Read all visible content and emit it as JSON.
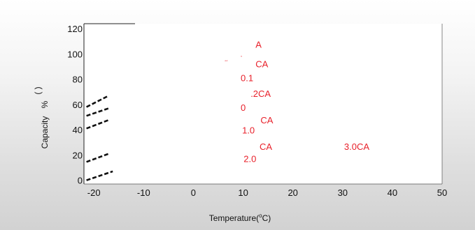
{
  "chart_data": {
    "type": "line",
    "title": "",
    "xlabel_main": "Temperature(",
    "xlabel_sup": "o",
    "xlabel_tail": "C)",
    "ylabel_text": "Capacity",
    "ylabel_pct": "%",
    "ylabel_paren": "( )",
    "xlim": [
      -22,
      50
    ],
    "ylim": [
      -3,
      124
    ],
    "x_ticks": [
      "-20",
      "-10",
      "0",
      "10",
      "20",
      "30",
      "40",
      "50"
    ],
    "x_tick_values": [
      -20,
      -10,
      0,
      10,
      20,
      30,
      40,
      50
    ],
    "y_ticks": [
      "0",
      "20",
      "40",
      "60",
      "80",
      "100",
      "120"
    ],
    "y_tick_values": [
      0,
      20,
      40,
      60,
      80,
      100,
      120
    ],
    "grid": false,
    "series_color": "#111111",
    "annotation_color": "#e8202a",
    "series": [
      {
        "x": [
          -21.5,
          -16.2
        ],
        "y": [
          0,
          7
        ]
      },
      {
        "x": [
          -21.5,
          -17.0
        ],
        "y": [
          14.5,
          21
        ]
      },
      {
        "x": [
          -21.5,
          -16.8
        ],
        "y": [
          41,
          48
        ]
      },
      {
        "x": [
          -21.5,
          -17.0
        ],
        "y": [
          51,
          57
        ]
      },
      {
        "x": [
          -21.5,
          -17.0
        ],
        "y": [
          58,
          67
        ]
      }
    ],
    "annotations": [
      {
        "text": "A",
        "x": 12.5,
        "y": 105,
        "size": "normal"
      },
      {
        "text": "«",
        "x": 9.5,
        "y": 97.5,
        "size": "small"
      },
      {
        "text": "««",
        "x": 6.3,
        "y": 94,
        "size": "small"
      },
      {
        "text": "CA",
        "x": 12.5,
        "y": 89.5,
        "size": "normal"
      },
      {
        "text": "0.1",
        "x": 9.5,
        "y": 78.5,
        "size": "normal"
      },
      {
        "text": ".2CA",
        "x": 11.5,
        "y": 66,
        "size": "normal"
      },
      {
        "text": "0",
        "x": 9.5,
        "y": 55,
        "size": "normal"
      },
      {
        "text": "CA",
        "x": 13.5,
        "y": 45,
        "size": "normal"
      },
      {
        "text": "1.0",
        "x": 9.8,
        "y": 37,
        "size": "normal"
      },
      {
        "text": "CA",
        "x": 13.3,
        "y": 24,
        "size": "normal"
      },
      {
        "text": "3.0CA",
        "x": 30.3,
        "y": 24,
        "size": "normal"
      },
      {
        "text": "2.0",
        "x": 10.1,
        "y": 14.5,
        "size": "normal"
      }
    ]
  }
}
